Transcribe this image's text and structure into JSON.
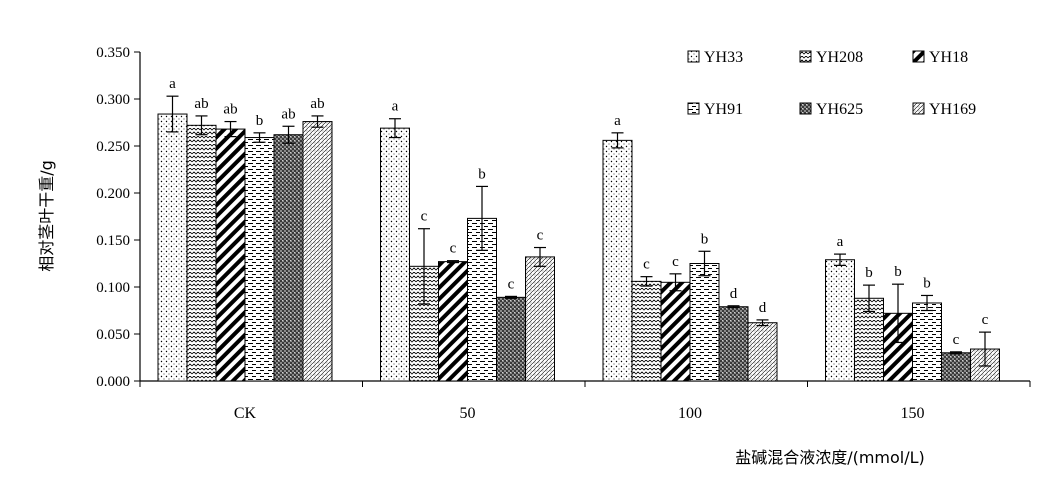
{
  "chart_data": {
    "type": "bar",
    "title": "",
    "xlabel": "盐碱混合液浓度/(mmol/L)",
    "ylabel": "相对茎叶干重/g",
    "ylim": [
      0,
      0.35
    ],
    "yticks": [
      "0.000",
      "0.050",
      "0.100",
      "0.150",
      "0.200",
      "0.250",
      "0.300",
      "0.350"
    ],
    "categories": [
      "CK",
      "50",
      "100",
      "150"
    ],
    "legend_position": "top-right",
    "grid": false,
    "series": [
      {
        "name": "YH33",
        "pattern": "dots",
        "values": [
          0.284,
          0.269,
          0.256,
          0.129
        ],
        "errors": [
          0.019,
          0.01,
          0.008,
          0.006
        ],
        "labels": [
          "a",
          "a",
          "a",
          "a"
        ]
      },
      {
        "name": "YH208",
        "pattern": "waves",
        "values": [
          0.272,
          0.122,
          0.106,
          0.088
        ],
        "errors": [
          0.01,
          0.04,
          0.005,
          0.014
        ],
        "labels": [
          "ab",
          "c",
          "c",
          "b"
        ]
      },
      {
        "name": "YH18",
        "pattern": "diagonal",
        "values": [
          0.268,
          0.127,
          0.105,
          0.072
        ],
        "errors": [
          0.008,
          0.001,
          0.009,
          0.031
        ],
        "labels": [
          "ab",
          "c",
          "c",
          "b"
        ]
      },
      {
        "name": "YH91",
        "pattern": "dashes",
        "values": [
          0.259,
          0.173,
          0.125,
          0.083
        ],
        "errors": [
          0.005,
          0.034,
          0.013,
          0.008
        ],
        "labels": [
          "b",
          "b",
          "b",
          "b"
        ]
      },
      {
        "name": "YH625",
        "pattern": "dense",
        "values": [
          0.262,
          0.089,
          0.079,
          0.03
        ],
        "errors": [
          0.009,
          0.001,
          0.001,
          0.001
        ],
        "labels": [
          "ab",
          "c",
          "d",
          "c"
        ]
      },
      {
        "name": "YH169",
        "pattern": "fine",
        "values": [
          0.276,
          0.132,
          0.062,
          0.034
        ],
        "errors": [
          0.006,
          0.01,
          0.003,
          0.018
        ],
        "labels": [
          "ab",
          "c",
          "d",
          "c"
        ]
      }
    ]
  }
}
